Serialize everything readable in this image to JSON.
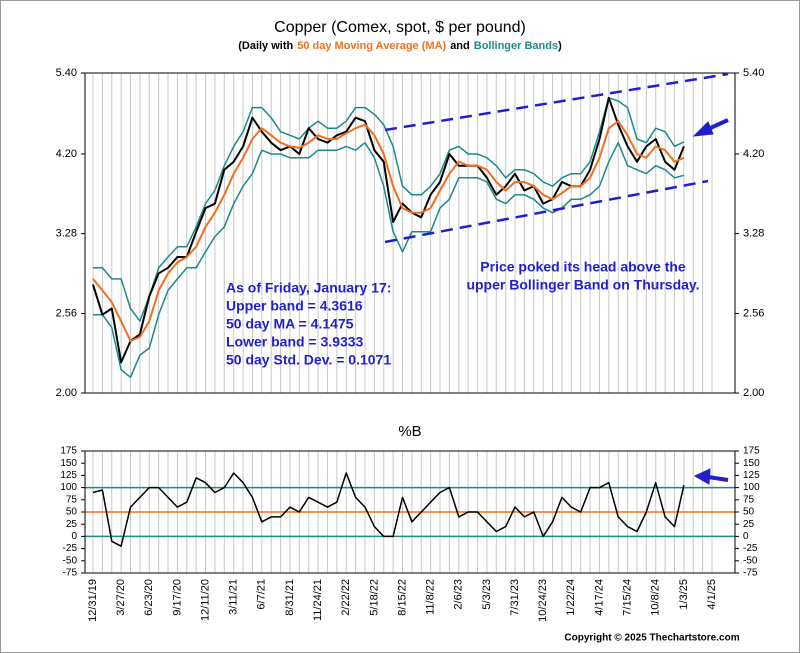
{
  "chart_data": [
    {
      "type": "line",
      "title": "Copper (Comex, spot, $ per pound)",
      "subtitle_parts": [
        "(Daily with",
        "50 day Moving Average (MA)",
        "and",
        "Bollinger Bands",
        ")"
      ],
      "subtitle_colors": [
        "#000000",
        "#f07020",
        "#000000",
        "#1a8a8a",
        "#000000"
      ],
      "log_scale": true,
      "categories": [
        "12/31/19",
        null,
        null,
        "3/27/20",
        null,
        null,
        "6/23/20",
        null,
        null,
        "9/17/20",
        null,
        null,
        "12/11/20",
        null,
        null,
        "3/11/21",
        null,
        null,
        "6/7/21",
        null,
        null,
        "8/31/21",
        null,
        null,
        "11/24/21",
        null,
        null,
        "2/22/22",
        null,
        null,
        "5/18/22",
        null,
        null,
        "8/15/22",
        null,
        null,
        "11/8/22",
        null,
        null,
        "2/6/23",
        null,
        null,
        "5/3/23",
        null,
        null,
        "7/31/23",
        null,
        null,
        "10/24/23",
        null,
        null,
        "1/22/24",
        null,
        null,
        "4/17/24",
        null,
        null,
        "7/15/24",
        null,
        null,
        "10/8/24",
        null,
        null,
        "1/3/25",
        null,
        null,
        "4/1/25"
      ],
      "series": [
        {
          "color": "#1a8a8a",
          "width": 1.5,
          "values": [
            2.95,
            2.95,
            2.85,
            2.85,
            2.6,
            2.5,
            2.7,
            2.95,
            3.05,
            3.15,
            3.15,
            3.35,
            3.6,
            3.75,
            4.05,
            4.3,
            4.5,
            4.85,
            4.85,
            4.7,
            4.5,
            4.45,
            4.4,
            4.55,
            4.65,
            4.55,
            4.55,
            4.65,
            4.85,
            4.85,
            4.75,
            4.6,
            4.3,
            3.8,
            3.7,
            3.7,
            3.8,
            3.95,
            4.25,
            4.3,
            4.2,
            4.2,
            4.15,
            4.05,
            3.9,
            4.0,
            4.0,
            3.95,
            3.85,
            3.8,
            3.9,
            3.95,
            3.95,
            4.1,
            4.5,
            5.0,
            4.95,
            4.85,
            4.4,
            4.35,
            4.55,
            4.5,
            4.3,
            4.36,
            null,
            null,
            null
          ]
        },
        {
          "color": "#1a8a8a",
          "width": 1.5,
          "values": [
            2.55,
            2.55,
            2.45,
            2.15,
            2.1,
            2.25,
            2.3,
            2.55,
            2.75,
            2.85,
            2.95,
            2.95,
            3.1,
            3.25,
            3.35,
            3.6,
            3.8,
            3.95,
            4.25,
            4.2,
            4.2,
            4.15,
            4.15,
            4.15,
            4.25,
            4.25,
            4.25,
            4.3,
            4.25,
            4.35,
            4.15,
            3.8,
            3.3,
            3.1,
            3.3,
            3.3,
            3.3,
            3.55,
            3.65,
            3.9,
            3.9,
            3.9,
            3.85,
            3.65,
            3.6,
            3.7,
            3.7,
            3.65,
            3.55,
            3.5,
            3.55,
            3.65,
            3.65,
            3.7,
            3.8,
            4.1,
            4.35,
            4.05,
            4.0,
            3.95,
            4.05,
            4.0,
            3.9,
            3.93,
            null,
            null,
            null
          ]
        },
        {
          "color": "#000000",
          "width": 2,
          "values": [
            2.8,
            2.55,
            2.6,
            2.2,
            2.35,
            2.4,
            2.7,
            2.9,
            2.95,
            3.05,
            3.05,
            3.3,
            3.55,
            3.6,
            4.0,
            4.1,
            4.3,
            4.7,
            4.5,
            4.35,
            4.25,
            4.3,
            4.2,
            4.55,
            4.4,
            4.35,
            4.45,
            4.5,
            4.7,
            4.65,
            4.25,
            4.1,
            3.4,
            3.6,
            3.5,
            3.45,
            3.7,
            3.85,
            4.2,
            4.05,
            4.05,
            4.05,
            3.9,
            3.7,
            3.8,
            3.95,
            3.75,
            3.8,
            3.6,
            3.65,
            3.85,
            3.8,
            3.8,
            4.0,
            4.4,
            5.0,
            4.6,
            4.3,
            4.1,
            4.3,
            4.4,
            4.1,
            4.0,
            4.3,
            null,
            null,
            null
          ]
        },
        {
          "color": "#f07020",
          "width": 2,
          "values": [
            2.85,
            2.75,
            2.65,
            2.5,
            2.35,
            2.38,
            2.5,
            2.75,
            2.9,
            3.0,
            3.05,
            3.15,
            3.35,
            3.5,
            3.7,
            3.95,
            4.15,
            4.4,
            4.55,
            4.45,
            4.35,
            4.3,
            4.28,
            4.35,
            4.45,
            4.4,
            4.4,
            4.48,
            4.55,
            4.6,
            4.45,
            4.2,
            3.8,
            3.55,
            3.5,
            3.5,
            3.55,
            3.75,
            3.95,
            4.1,
            4.05,
            4.05,
            4.0,
            3.85,
            3.75,
            3.85,
            3.85,
            3.8,
            3.7,
            3.65,
            3.72,
            3.8,
            3.8,
            3.9,
            4.15,
            4.55,
            4.65,
            4.45,
            4.2,
            4.15,
            4.3,
            4.25,
            4.1,
            4.15,
            null,
            null,
            null
          ]
        }
      ],
      "ylim": [
        2.0,
        5.4
      ],
      "yticks": [
        {
          "value": 2.0,
          "label": "2.00"
        },
        2.56,
        3.28,
        {
          "value": 4.2,
          "label": "4.20"
        },
        {
          "value": 5.4,
          "label": "5.40"
        }
      ],
      "annotations": [
        {
          "lines": [
            "As of Friday, January 17:",
            "Upper band = 4.3616",
            "50 day MA = 4.1475",
            "Lower band = 3.9333",
            "50 day Std. Dev. = 0.1071"
          ],
          "color": "#1f1fd0"
        },
        {
          "lines": [
            "Price poked its head above the",
            "upper Bollinger Band on Thursday."
          ],
          "color": "#1f1fd0"
        }
      ]
    },
    {
      "type": "line",
      "title": "%B",
      "categories": [
        "12/31/19",
        null,
        null,
        "3/27/20",
        null,
        null,
        "6/23/20",
        null,
        null,
        "9/17/20",
        null,
        null,
        "12/11/20",
        null,
        null,
        "3/11/21",
        null,
        null,
        "6/7/21",
        null,
        null,
        "8/31/21",
        null,
        null,
        "11/24/21",
        null,
        null,
        "2/22/22",
        null,
        null,
        "5/18/22",
        null,
        null,
        "8/15/22",
        null,
        null,
        "11/8/22",
        null,
        null,
        "2/6/23",
        null,
        null,
        "5/3/23",
        null,
        null,
        "7/31/23",
        null,
        null,
        "10/24/23",
        null,
        null,
        "1/22/24",
        null,
        null,
        "4/17/24",
        null,
        null,
        "7/15/24",
        null,
        null,
        "10/8/24",
        null,
        null,
        "1/3/25",
        null,
        null,
        "4/1/25"
      ],
      "series": [
        {
          "color": "#000000",
          "width": 1.5,
          "values": [
            90,
            95,
            -10,
            -20,
            60,
            80,
            100,
            100,
            80,
            60,
            70,
            120,
            110,
            90,
            100,
            130,
            110,
            80,
            30,
            40,
            40,
            60,
            50,
            80,
            70,
            60,
            70,
            130,
            80,
            60,
            20,
            0,
            0,
            80,
            30,
            50,
            70,
            90,
            100,
            40,
            50,
            50,
            30,
            10,
            20,
            60,
            40,
            50,
            0,
            30,
            80,
            60,
            50,
            100,
            100,
            110,
            40,
            20,
            10,
            50,
            110,
            40,
            20,
            105,
            null,
            null,
            null
          ]
        }
      ],
      "reference_lines": [
        {
          "value": 0,
          "color": "#1a8a8a"
        },
        {
          "value": 50,
          "color": "#f07020"
        },
        {
          "value": 100,
          "color": "#1a8a8a"
        }
      ],
      "ylim": [
        -75,
        175
      ],
      "yticks": [
        -75,
        -50,
        -25,
        0,
        25,
        50,
        75,
        100,
        125,
        150,
        175
      ]
    }
  ],
  "footer": "Copyright © 2025 Thechartstore.com"
}
